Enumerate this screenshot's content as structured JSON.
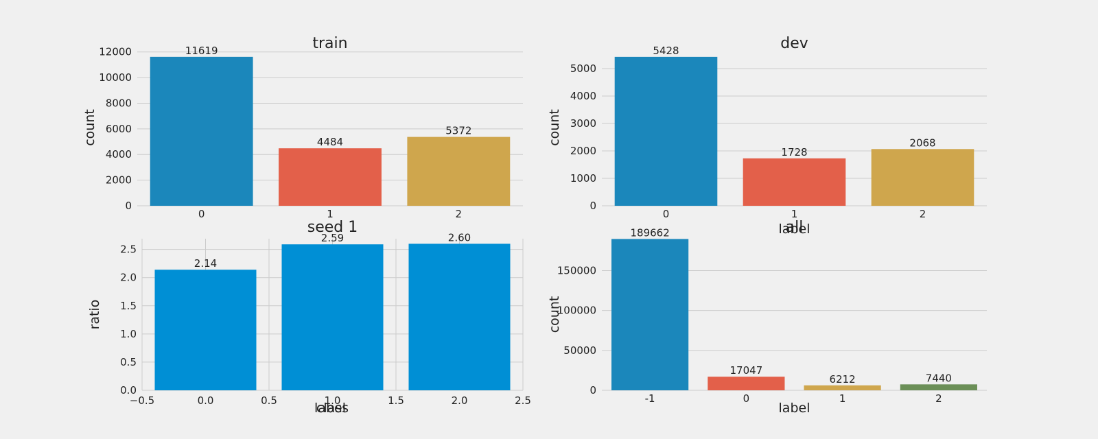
{
  "chart_data": [
    {
      "type": "bar",
      "title": "train",
      "xlabel": "label",
      "ylabel": "count",
      "categories": [
        "0",
        "1",
        "2"
      ],
      "values": [
        11619,
        4484,
        5372
      ],
      "value_labels": [
        "11619",
        "4484",
        "5372"
      ],
      "colors": [
        "#1b87bb",
        "#e3604a",
        "#cfa64d"
      ],
      "ylim": [
        0,
        12200
      ],
      "yticks": [
        0,
        2000,
        4000,
        6000,
        8000,
        10000,
        12000
      ],
      "ytick_labels": [
        "0",
        "2000",
        "4000",
        "6000",
        "8000",
        "10000",
        "12000"
      ],
      "grid": "y"
    },
    {
      "type": "bar",
      "title": "dev",
      "xlabel": "label",
      "ylabel": "count",
      "categories": [
        "0",
        "1",
        "2"
      ],
      "values": [
        5428,
        1728,
        2068
      ],
      "value_labels": [
        "5428",
        "1728",
        "2068"
      ],
      "colors": [
        "#1b87bb",
        "#e3604a",
        "#cfa64d"
      ],
      "ylim": [
        0,
        5700
      ],
      "yticks": [
        0,
        1000,
        2000,
        3000,
        4000,
        5000
      ],
      "ytick_labels": [
        "0",
        "1000",
        "2000",
        "3000",
        "4000",
        "5000"
      ],
      "grid": "y"
    },
    {
      "type": "bar",
      "title": "seed 1",
      "xlabel": "class",
      "ylabel": "ratio",
      "x": [
        0,
        1,
        2
      ],
      "values": [
        2.14,
        2.59,
        2.6
      ],
      "value_labels": [
        "2.14",
        "2.59",
        "2.60"
      ],
      "colors": [
        "#008fd5",
        "#008fd5",
        "#008fd5"
      ],
      "xlim": [
        -0.5,
        2.5
      ],
      "xticks": [
        -0.5,
        0.0,
        0.5,
        1.0,
        1.5,
        2.0,
        2.5
      ],
      "xtick_labels": [
        "−0.5",
        "0.0",
        "0.5",
        "1.0",
        "1.5",
        "2.0",
        "2.5"
      ],
      "ylim": [
        0,
        2.69
      ],
      "yticks": [
        0,
        0.5,
        1.0,
        1.5,
        2.0,
        2.5
      ],
      "ytick_labels": [
        "0.0",
        "0.5",
        "1.0",
        "1.5",
        "2.0",
        "2.5"
      ],
      "grid": "both"
    },
    {
      "type": "bar",
      "title": "all",
      "xlabel": "label",
      "ylabel": "count",
      "categories": [
        "-1",
        "0",
        "1",
        "2"
      ],
      "values": [
        189662,
        17047,
        6212,
        7440
      ],
      "value_labels": [
        "189662",
        "17047",
        "6212",
        "7440"
      ],
      "colors": [
        "#1b87bb",
        "#e3604a",
        "#cfa64d",
        "#6b8f57"
      ],
      "ylim": [
        0,
        190000
      ],
      "yticks": [
        0,
        50000,
        100000,
        150000
      ],
      "ytick_labels": [
        "0",
        "50000",
        "100000",
        "150000"
      ],
      "grid": "y"
    }
  ]
}
